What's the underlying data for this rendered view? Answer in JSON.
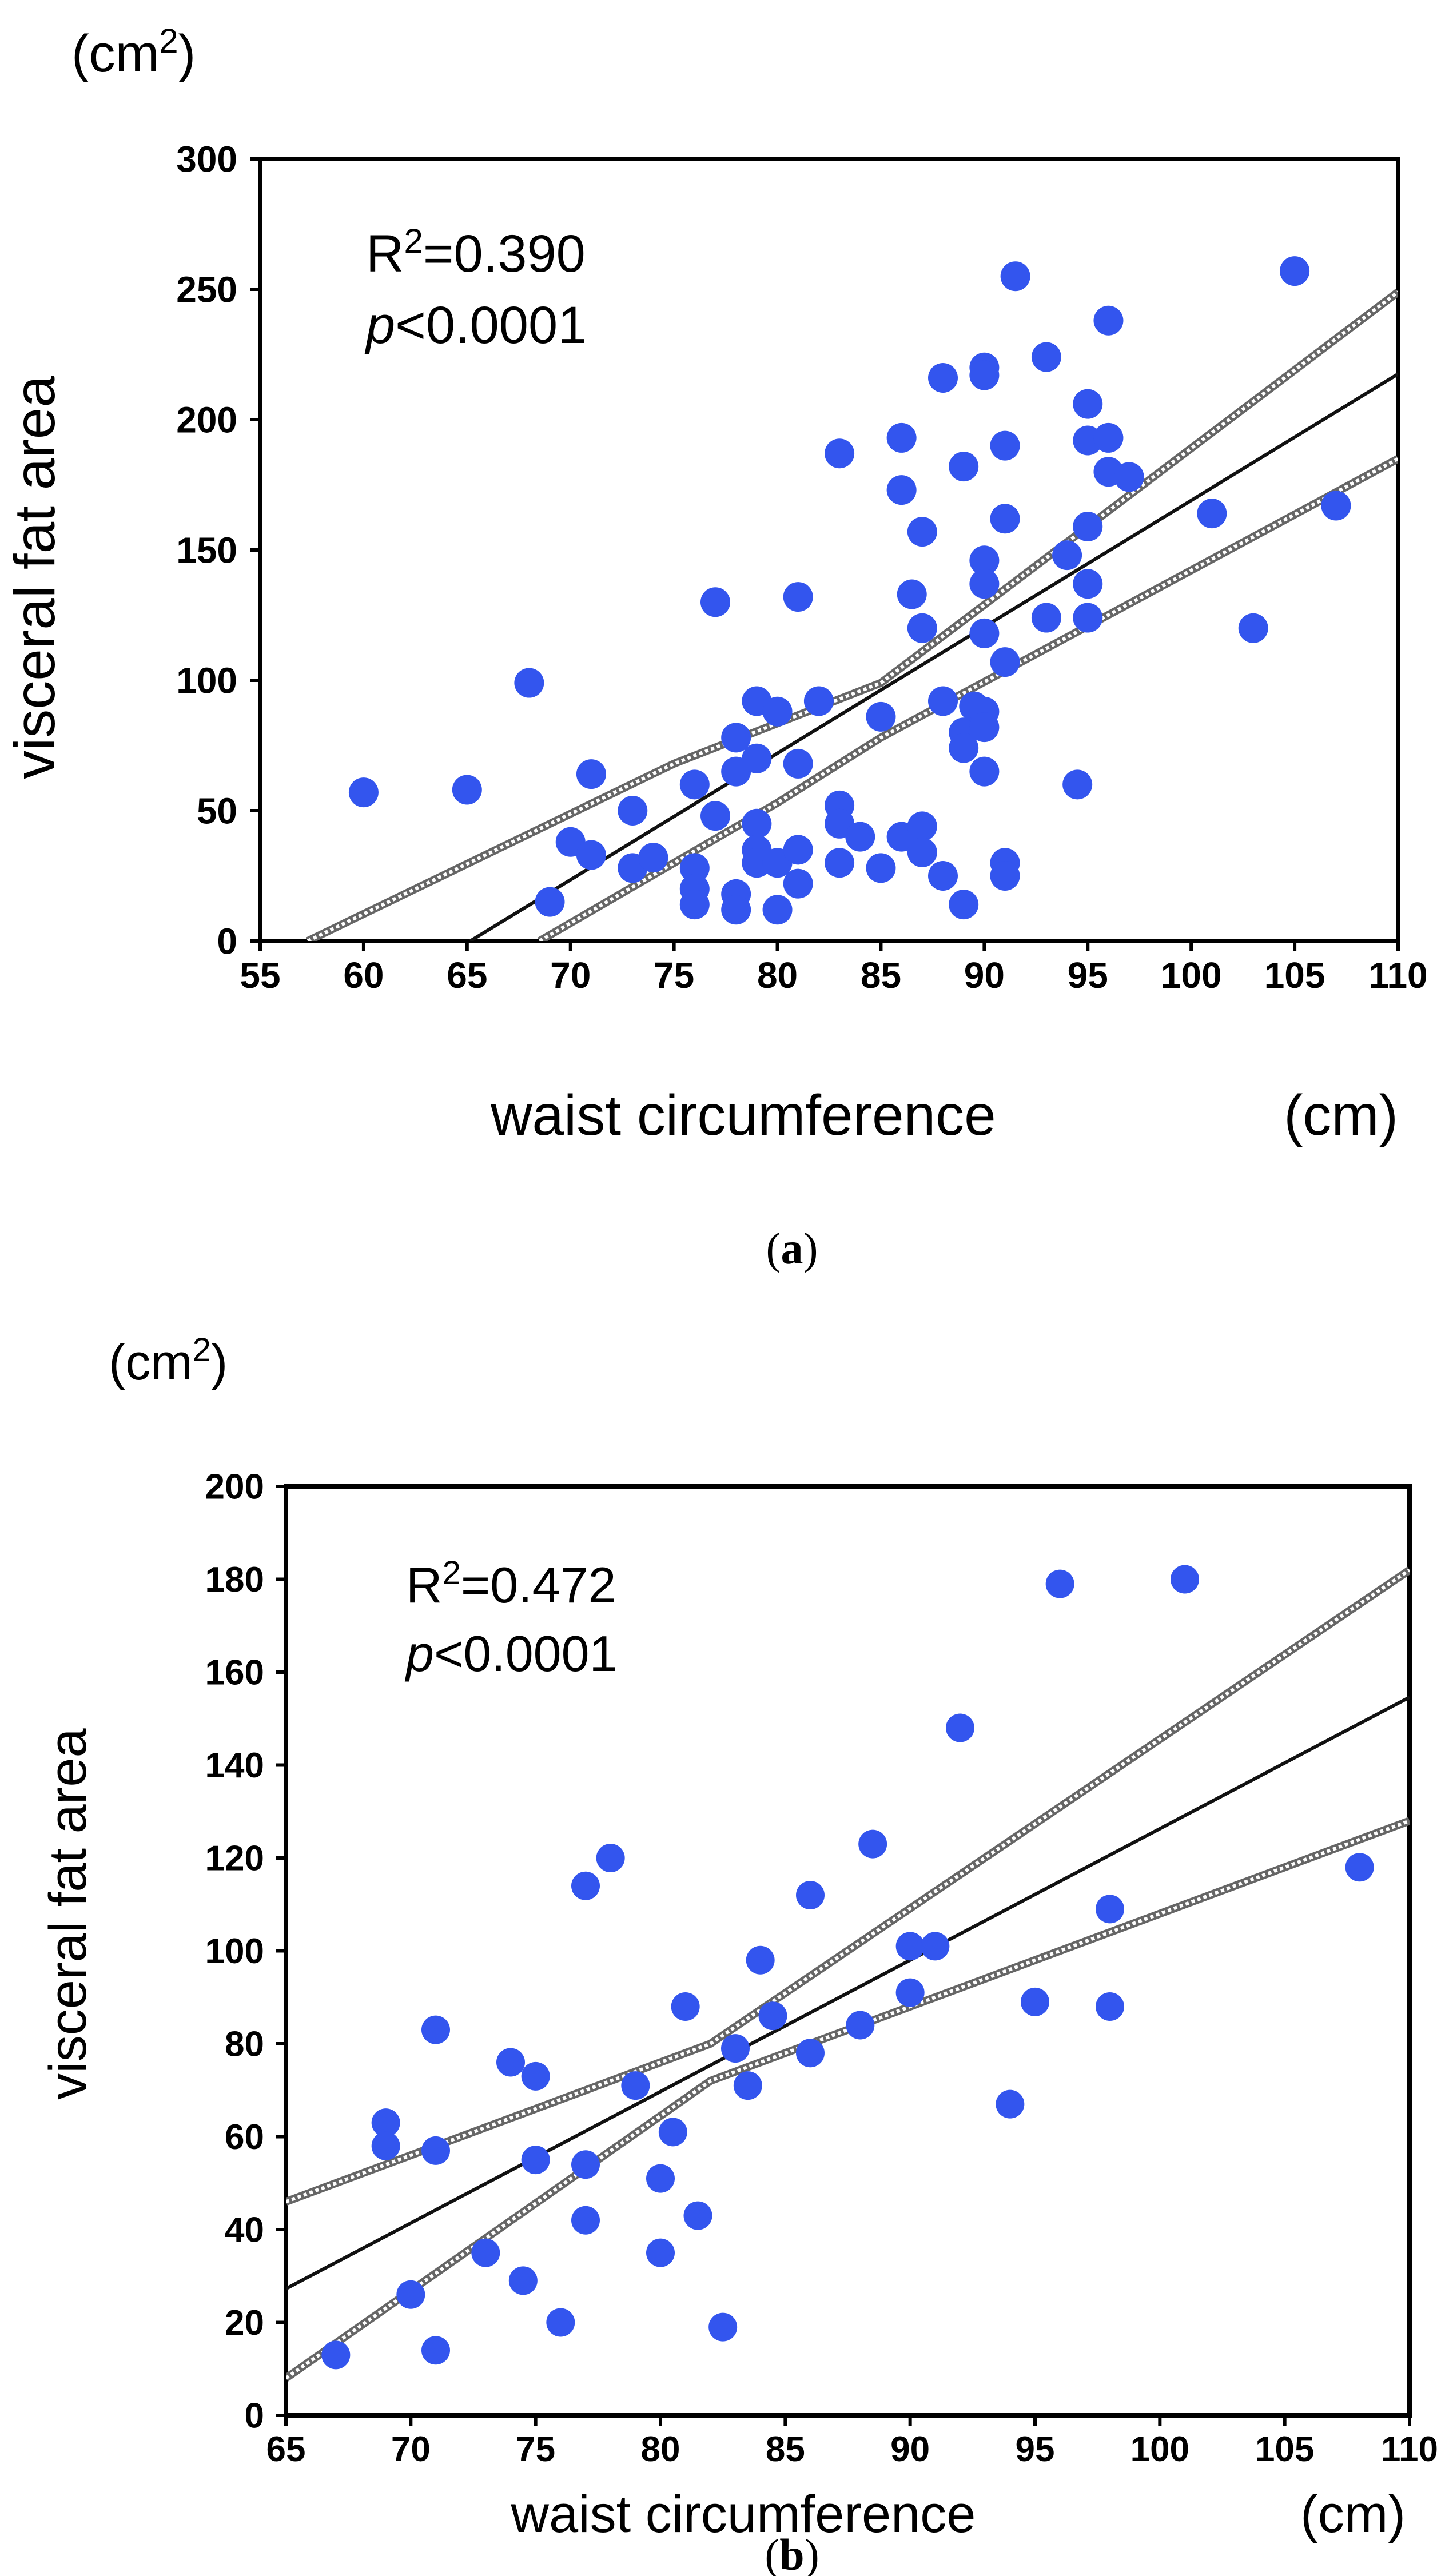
{
  "colors": {
    "point": "#3355ee",
    "axis": "#000000",
    "fit": "#111111",
    "ci": "#666666"
  },
  "chart_data": [
    {
      "type": "scatter",
      "panel_label": "a",
      "unit_y": "(cm",
      "unit_y_sup": "2",
      "unit_y_close": ")",
      "unit_x": "(cm)",
      "xlabel": "waist circumference",
      "ylabel": "visceral fat area",
      "stat_r2_prefix": "R",
      "stat_r2_sup": "2",
      "stat_r2_value": "=0.390",
      "stat_p_italic": "p",
      "stat_p_value": "<0.0001",
      "xlim": [
        55,
        110
      ],
      "ylim": [
        0,
        300
      ],
      "xticks": [
        55,
        60,
        65,
        70,
        75,
        80,
        85,
        90,
        95,
        100,
        105,
        110
      ],
      "yticks": [
        0,
        50,
        100,
        150,
        200,
        250,
        300
      ],
      "fit": {
        "slope": 4.85,
        "intercept": -316
      },
      "ci_upper": [
        [
          57.3,
          0
        ],
        [
          75,
          68
        ],
        [
          85,
          99
        ],
        [
          110,
          249
        ]
      ],
      "ci_lower": [
        [
          68.5,
          0
        ],
        [
          80,
          53
        ],
        [
          85,
          78
        ],
        [
          110,
          185
        ]
      ],
      "points": [
        [
          60,
          57
        ],
        [
          65,
          58
        ],
        [
          68,
          99
        ],
        [
          69,
          15
        ],
        [
          70,
          38
        ],
        [
          71,
          33
        ],
        [
          71,
          64
        ],
        [
          73,
          50
        ],
        [
          73,
          28
        ],
        [
          74,
          32
        ],
        [
          76,
          60
        ],
        [
          76,
          28
        ],
        [
          76,
          20
        ],
        [
          76,
          14
        ],
        [
          77,
          130
        ],
        [
          77,
          48
        ],
        [
          78,
          78
        ],
        [
          78,
          65
        ],
        [
          78,
          18
        ],
        [
          78,
          12
        ],
        [
          79,
          92
        ],
        [
          79,
          70
        ],
        [
          79,
          45
        ],
        [
          79,
          35
        ],
        [
          79,
          30
        ],
        [
          80,
          88
        ],
        [
          80,
          12
        ],
        [
          80,
          30
        ],
        [
          81,
          132
        ],
        [
          81,
          68
        ],
        [
          81,
          35
        ],
        [
          81,
          22
        ],
        [
          82,
          92
        ],
        [
          83,
          187
        ],
        [
          83,
          52
        ],
        [
          83,
          45
        ],
        [
          83,
          30
        ],
        [
          84,
          40
        ],
        [
          85,
          86
        ],
        [
          85,
          28
        ],
        [
          86,
          193
        ],
        [
          86,
          173
        ],
        [
          86,
          40
        ],
        [
          86.5,
          133
        ],
        [
          87,
          157
        ],
        [
          87,
          120
        ],
        [
          87,
          44
        ],
        [
          87,
          34
        ],
        [
          88,
          216
        ],
        [
          88,
          92
        ],
        [
          88,
          25
        ],
        [
          89,
          182
        ],
        [
          89,
          80
        ],
        [
          89,
          74
        ],
        [
          89,
          14
        ],
        [
          89.5,
          90
        ],
        [
          90,
          220
        ],
        [
          90,
          217
        ],
        [
          90,
          146
        ],
        [
          90,
          137
        ],
        [
          90,
          118
        ],
        [
          90,
          88
        ],
        [
          90,
          82
        ],
        [
          90,
          65
        ],
        [
          91,
          190
        ],
        [
          91,
          162
        ],
        [
          91,
          107
        ],
        [
          91,
          30
        ],
        [
          91,
          25
        ],
        [
          91.5,
          255
        ],
        [
          93,
          224
        ],
        [
          93,
          124
        ],
        [
          94,
          148
        ],
        [
          94.5,
          60
        ],
        [
          95,
          206
        ],
        [
          95,
          192
        ],
        [
          95,
          159
        ],
        [
          95,
          137
        ],
        [
          95,
          124
        ],
        [
          96,
          238
        ],
        [
          96,
          193
        ],
        [
          96,
          180
        ],
        [
          97,
          178
        ],
        [
          101,
          164
        ],
        [
          103,
          120
        ],
        [
          105,
          257
        ],
        [
          107,
          167
        ]
      ]
    },
    {
      "type": "scatter",
      "panel_label": "b",
      "unit_y": "(cm",
      "unit_y_sup": "2",
      "unit_y_close": ")",
      "unit_x": "(cm)",
      "xlabel": "waist circumference",
      "ylabel": "visceral fat area",
      "stat_r2_prefix": "R",
      "stat_r2_sup": "2",
      "stat_r2_value": "=0.472",
      "stat_p_italic": "p",
      "stat_p_value": "<0.0001",
      "xlim": [
        65,
        110
      ],
      "ylim": [
        0,
        200
      ],
      "xticks": [
        65,
        70,
        75,
        80,
        85,
        90,
        95,
        100,
        105,
        110
      ],
      "yticks": [
        0,
        20,
        40,
        60,
        80,
        100,
        120,
        140,
        160,
        180,
        200
      ],
      "fit": {
        "slope": 2.83,
        "intercept": -156.7
      },
      "ci_upper": [
        [
          65,
          46
        ],
        [
          82,
          80
        ],
        [
          110,
          182
        ]
      ],
      "ci_lower": [
        [
          65,
          8
        ],
        [
          82,
          72
        ],
        [
          110,
          128
        ]
      ],
      "points": [
        [
          67,
          13
        ],
        [
          69,
          63
        ],
        [
          69,
          58
        ],
        [
          70,
          26
        ],
        [
          71,
          83
        ],
        [
          71,
          57
        ],
        [
          71,
          14
        ],
        [
          73,
          35
        ],
        [
          74,
          76
        ],
        [
          74.5,
          29
        ],
        [
          75,
          73
        ],
        [
          75,
          55
        ],
        [
          76,
          20
        ],
        [
          77,
          114
        ],
        [
          77,
          54
        ],
        [
          77,
          42
        ],
        [
          78,
          120
        ],
        [
          79,
          71
        ],
        [
          80,
          51
        ],
        [
          80,
          35
        ],
        [
          80.5,
          61
        ],
        [
          81,
          88
        ],
        [
          81.5,
          43
        ],
        [
          82.5,
          19
        ],
        [
          83,
          79
        ],
        [
          83.5,
          71
        ],
        [
          84,
          98
        ],
        [
          84.5,
          86
        ],
        [
          86,
          112
        ],
        [
          86,
          78
        ],
        [
          88,
          84
        ],
        [
          88.5,
          123
        ],
        [
          90,
          101
        ],
        [
          90,
          91
        ],
        [
          91,
          101
        ],
        [
          92,
          148
        ],
        [
          94,
          67
        ],
        [
          95,
          89
        ],
        [
          96,
          179
        ],
        [
          98,
          109
        ],
        [
          98,
          88
        ],
        [
          101,
          180
        ],
        [
          108,
          118
        ]
      ]
    }
  ]
}
